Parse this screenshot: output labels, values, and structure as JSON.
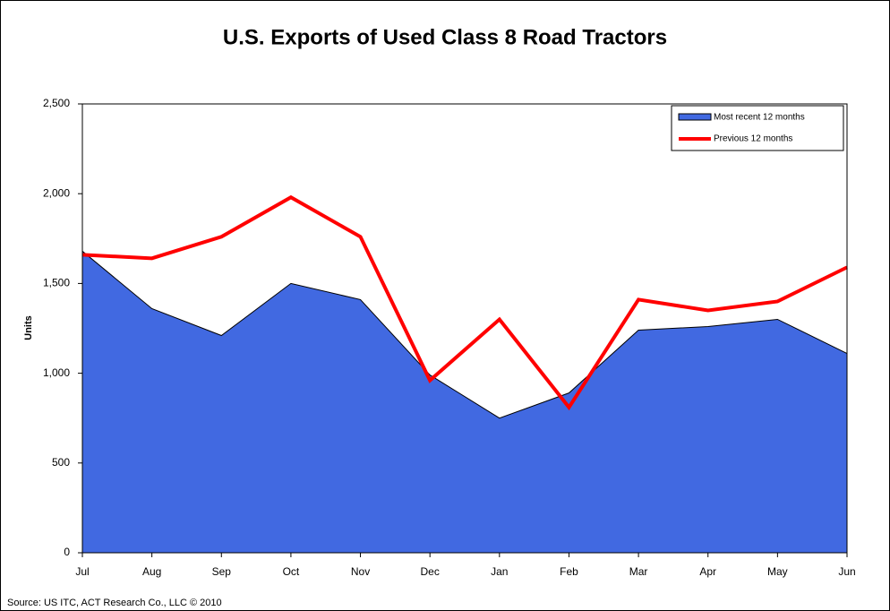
{
  "chart_data": {
    "type": "area",
    "title": "U.S. Exports of Used Class 8 Road Tractors",
    "y_label": "Units",
    "source": "Source: US ITC, ACT Research Co., LLC © 2010",
    "categories": [
      "Jul",
      "Aug",
      "Sep",
      "Oct",
      "Nov",
      "Dec",
      "Jan",
      "Feb",
      "Mar",
      "Apr",
      "May",
      "Jun"
    ],
    "series": [
      {
        "name": "Most recent 12 months",
        "type": "area",
        "color": "#4169e1",
        "values": [
          1680,
          1360,
          1210,
          1500,
          1410,
          990,
          750,
          890,
          1240,
          1260,
          1300,
          1110
        ]
      },
      {
        "name": "Previous 12 months",
        "type": "line",
        "color": "#ff0000",
        "values": [
          1660,
          1640,
          1760,
          1980,
          1760,
          960,
          1300,
          810,
          1410,
          1350,
          1400,
          1590
        ]
      }
    ],
    "ylim": [
      0,
      2500
    ],
    "yticks": [
      0,
      500,
      {
        "value": 1000,
        "label": "1,000"
      },
      {
        "value": 1500,
        "label": "1,500"
      },
      {
        "value": 2000,
        "label": "2,000"
      },
      {
        "value": 2500,
        "label": "2,500"
      }
    ],
    "grid": false,
    "legend": "top-right"
  }
}
